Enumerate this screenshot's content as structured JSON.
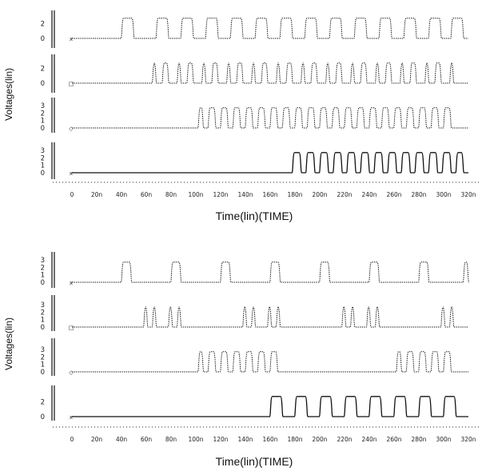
{
  "chart_data": [
    {
      "type": "line",
      "title": "",
      "xlabel": "Time(lin)(TIME)",
      "ylabel": "Voltages(lin)",
      "xlim": [
        0,
        320
      ],
      "x_ticks": [
        "0",
        "20n",
        "40n",
        "60n",
        "80n",
        "100n",
        "120n",
        "140n",
        "160n",
        "180n",
        "200n",
        "220n",
        "240n",
        "260n",
        "280n",
        "300n",
        "320n"
      ],
      "grid": false,
      "series": [
        {
          "marker": "x",
          "ylim": [
            0,
            3
          ],
          "y_ticks": [
            "0",
            "2"
          ],
          "high_intervals": [
            [
              40,
              50
            ],
            [
              68,
              78
            ],
            [
              88,
              98
            ],
            [
              108,
              118
            ],
            [
              128,
              138
            ],
            [
              148,
              158
            ],
            [
              168,
              178
            ],
            [
              188,
              198
            ],
            [
              208,
              218
            ],
            [
              228,
              238
            ],
            [
              248,
              258
            ],
            [
              268,
              278
            ],
            [
              288,
              298
            ],
            [
              306,
              316
            ]
          ]
        },
        {
          "marker": "□",
          "ylim": [
            0,
            3
          ],
          "y_ticks": [
            "0",
            "2"
          ],
          "high_intervals": [
            [
              65,
              68
            ],
            [
              73,
              78
            ],
            [
              85,
              88
            ],
            [
              93,
              98
            ],
            [
              105,
              108
            ],
            [
              113,
              118
            ],
            [
              125,
              128
            ],
            [
              133,
              138
            ],
            [
              145,
              148
            ],
            [
              153,
              158
            ],
            [
              165,
              168
            ],
            [
              173,
              178
            ],
            [
              185,
              188
            ],
            [
              193,
              198
            ],
            [
              205,
              208
            ],
            [
              213,
              218
            ],
            [
              225,
              228
            ],
            [
              233,
              238
            ],
            [
              245,
              248
            ],
            [
              253,
              258
            ],
            [
              265,
              268
            ],
            [
              273,
              278
            ],
            [
              285,
              288
            ],
            [
              293,
              298
            ],
            [
              305,
              308
            ]
          ]
        },
        {
          "marker": "◇",
          "ylim": [
            0,
            3
          ],
          "y_ticks": [
            "0",
            "1",
            "2",
            "3"
          ],
          "high_intervals": [
            [
              102,
              106
            ],
            [
              110,
              116
            ],
            [
              120,
              126
            ],
            [
              130,
              136
            ],
            [
              140,
              146
            ],
            [
              150,
              156
            ],
            [
              160,
              166
            ],
            [
              170,
              176
            ],
            [
              180,
              186
            ],
            [
              190,
              196
            ],
            [
              200,
              206
            ],
            [
              210,
              216
            ],
            [
              220,
              226
            ],
            [
              230,
              236
            ],
            [
              240,
              246
            ],
            [
              250,
              256
            ],
            [
              260,
              266
            ],
            [
              270,
              276
            ],
            [
              280,
              286
            ],
            [
              290,
              296
            ],
            [
              300,
              306
            ]
          ]
        },
        {
          "marker": "x",
          "ylim": [
            0,
            3
          ],
          "y_ticks": [
            "0",
            "1",
            "2",
            "3"
          ],
          "high_intervals": [
            [
              178,
              185
            ],
            [
              189,
              196
            ],
            [
              200,
              207
            ],
            [
              211,
              218
            ],
            [
              222,
              229
            ],
            [
              233,
              240
            ],
            [
              244,
              251
            ],
            [
              255,
              262
            ],
            [
              266,
              273
            ],
            [
              277,
              284
            ],
            [
              288,
              295
            ],
            [
              299,
              306
            ],
            [
              310,
              316
            ]
          ]
        }
      ]
    },
    {
      "type": "line",
      "title": "",
      "xlabel": "Time(lin)(TIME)",
      "ylabel": "Voltages(lin)",
      "xlim": [
        0,
        320
      ],
      "x_ticks": [
        "0",
        "20n",
        "40n",
        "60n",
        "80n",
        "100n",
        "120n",
        "140n",
        "160n",
        "180n",
        "200n",
        "220n",
        "240n",
        "260n",
        "280n",
        "300n",
        "320n"
      ],
      "grid": false,
      "series": [
        {
          "marker": "x",
          "ylim": [
            0,
            3
          ],
          "y_ticks": [
            "0",
            "1",
            "2",
            "3"
          ],
          "high_intervals": [
            [
              40,
              48
            ],
            [
              80,
              88
            ],
            [
              120,
              128
            ],
            [
              160,
              168
            ],
            [
              200,
              208
            ],
            [
              240,
              248
            ],
            [
              280,
              288
            ],
            [
              316,
              320
            ]
          ]
        },
        {
          "marker": "□",
          "ylim": [
            0,
            3
          ],
          "y_ticks": [
            "0",
            "1",
            "2",
            "3"
          ],
          "high_intervals": [
            [
              58,
              61
            ],
            [
              65,
              68
            ],
            [
              78,
              81
            ],
            [
              85,
              88
            ],
            [
              138,
              141
            ],
            [
              145,
              148
            ],
            [
              158,
              161
            ],
            [
              165,
              168
            ],
            [
              218,
              221
            ],
            [
              225,
              228
            ],
            [
              238,
              241
            ],
            [
              245,
              248
            ],
            [
              298,
              301
            ],
            [
              305,
              308
            ]
          ]
        },
        {
          "marker": "◇",
          "ylim": [
            0,
            3
          ],
          "y_ticks": [
            "0",
            "1",
            "2",
            "3"
          ],
          "high_intervals": [
            [
              102,
              106
            ],
            [
              110,
              116
            ],
            [
              120,
              126
            ],
            [
              130,
              136
            ],
            [
              140,
              146
            ],
            [
              150,
              156
            ],
            [
              160,
              166
            ],
            [
              262,
              266
            ],
            [
              270,
              276
            ],
            [
              280,
              286
            ],
            [
              290,
              296
            ],
            [
              300,
              306
            ]
          ]
        },
        {
          "marker": "x",
          "ylim": [
            0,
            3
          ],
          "y_ticks": [
            "0",
            "2"
          ],
          "high_intervals": [
            [
              160,
              170
            ],
            [
              180,
              190
            ],
            [
              200,
              210
            ],
            [
              220,
              230
            ],
            [
              240,
              250
            ],
            [
              260,
              270
            ],
            [
              280,
              290
            ],
            [
              300,
              310
            ]
          ]
        }
      ]
    }
  ]
}
